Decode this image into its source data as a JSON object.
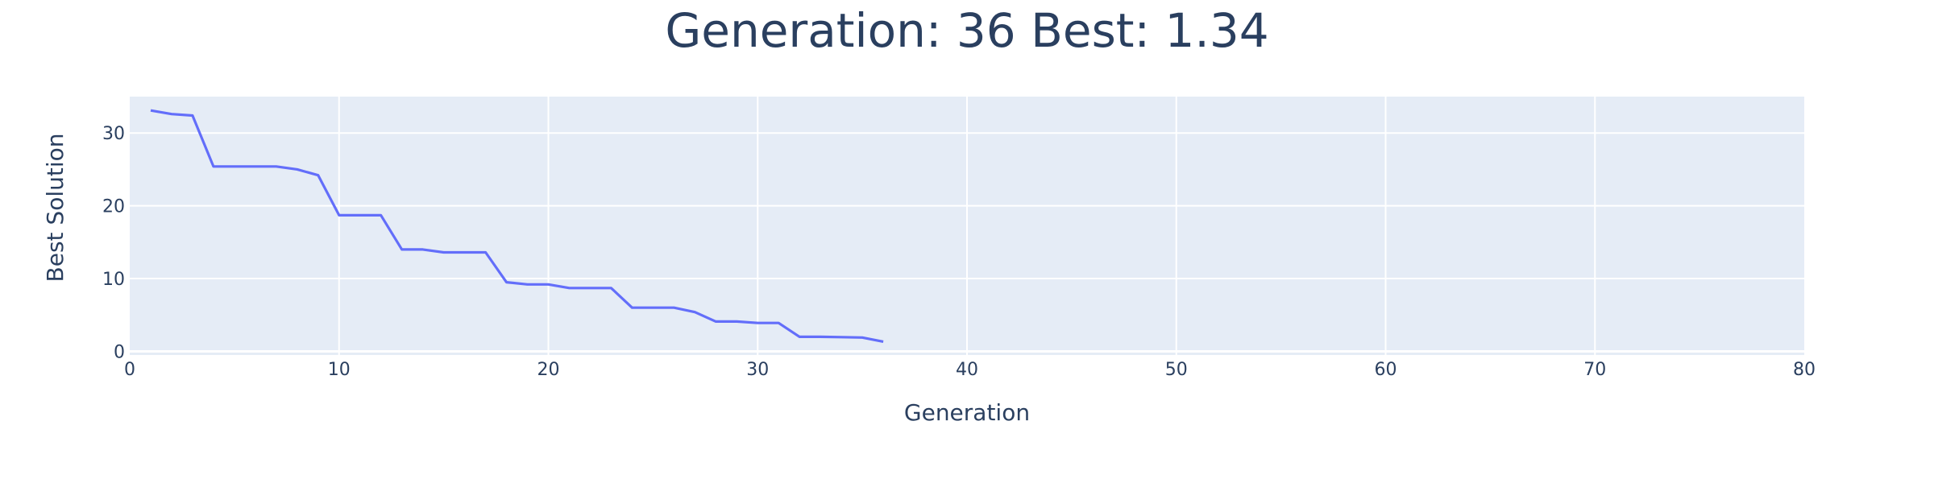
{
  "chart_data": {
    "type": "line",
    "title": "Generation: 36 Best: 1.34",
    "xlabel": "Generation",
    "ylabel": "Best Solution",
    "xlim": [
      0,
      80
    ],
    "ylim": [
      -0.5,
      35
    ],
    "xticks": [
      0,
      10,
      20,
      30,
      40,
      50,
      60,
      70,
      80
    ],
    "yticks": [
      0,
      10,
      20,
      30
    ],
    "grid": true,
    "legend": "none",
    "colors": {
      "line": "#636efa",
      "plot_bg": "#e5ecf6",
      "text": "#2a3f5f"
    },
    "series": [
      {
        "x": [
          1,
          2,
          3,
          4,
          5,
          6,
          7,
          8,
          9,
          10,
          11,
          12,
          13,
          14,
          15,
          16,
          17,
          18,
          19,
          20,
          21,
          22,
          23,
          24,
          25,
          26,
          27,
          28,
          29,
          30,
          31,
          32,
          33,
          34,
          35,
          36
        ],
        "values": [
          33.1,
          32.6,
          32.4,
          25.4,
          25.4,
          25.4,
          25.4,
          25.0,
          24.2,
          18.7,
          18.7,
          18.7,
          14.0,
          14.0,
          13.6,
          13.6,
          13.6,
          9.5,
          9.2,
          9.2,
          8.7,
          8.7,
          8.7,
          6.0,
          6.0,
          6.0,
          5.4,
          4.1,
          4.1,
          3.9,
          3.9,
          2.0,
          2.0,
          1.95,
          1.9,
          1.34
        ]
      }
    ]
  }
}
